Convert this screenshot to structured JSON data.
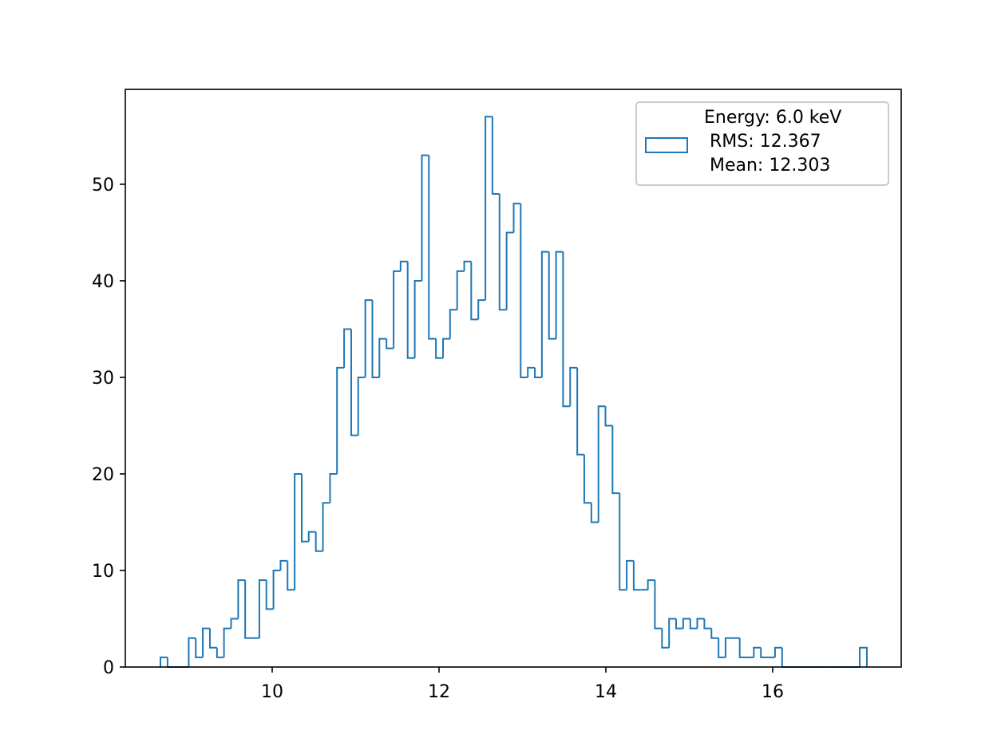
{
  "chart_data": {
    "type": "histogram",
    "bins": [
      8.66,
      8.745,
      8.829,
      8.914,
      8.999,
      9.083,
      9.168,
      9.253,
      9.338,
      9.422,
      9.507,
      9.592,
      9.676,
      9.761,
      9.846,
      9.93,
      10.015,
      10.1,
      10.184,
      10.269,
      10.354,
      10.438,
      10.523,
      10.608,
      10.693,
      10.777,
      10.862,
      10.947,
      11.031,
      11.116,
      11.201,
      11.285,
      11.37,
      11.455,
      11.539,
      11.624,
      11.709,
      11.794,
      11.878,
      11.963,
      12.048,
      12.132,
      12.217,
      12.302,
      12.386,
      12.471,
      12.556,
      12.64,
      12.725,
      12.81,
      12.895,
      12.979,
      13.064,
      13.149,
      13.233,
      13.318,
      13.403,
      13.487,
      13.572,
      13.657,
      13.741,
      13.826,
      13.911,
      13.995,
      14.08,
      14.165,
      14.25,
      14.334,
      14.419,
      14.504,
      14.588,
      14.673,
      14.758,
      14.842,
      14.927,
      15.012,
      15.096,
      15.181,
      15.266,
      15.351,
      15.435,
      15.52,
      15.605,
      15.689,
      15.774,
      15.859,
      15.943,
      16.028,
      16.113,
      16.197,
      16.282,
      16.367,
      16.451,
      16.536,
      16.621,
      16.706,
      16.79,
      16.875,
      16.96,
      17.044,
      17.129
    ],
    "series": [
      {
        "name": "Energy: 6.0 keV\n RMS: 12.367\n Mean: 12.303",
        "color": "#1f77b4",
        "values": [
          1,
          0,
          0,
          0,
          3,
          1,
          4,
          2,
          1,
          4,
          5,
          9,
          3,
          3,
          9,
          6,
          10,
          11,
          8,
          20,
          13,
          14,
          12,
          17,
          20,
          31,
          35,
          24,
          30,
          38,
          30,
          34,
          33,
          41,
          42,
          32,
          40,
          53,
          34,
          32,
          34,
          37,
          41,
          42,
          36,
          38,
          57,
          49,
          37,
          45,
          48,
          30,
          31,
          30,
          43,
          34,
          43,
          27,
          31,
          22,
          17,
          15,
          27,
          25,
          18,
          8,
          11,
          8,
          8,
          9,
          4,
          2,
          5,
          4,
          5,
          4,
          5,
          4,
          3,
          1,
          3,
          3,
          1,
          1,
          2,
          1,
          1,
          2,
          0,
          0,
          0,
          0,
          0,
          0,
          0,
          0,
          0,
          0,
          0,
          2
        ]
      }
    ],
    "xlim": [
      8.239,
      17.541
    ],
    "xticks": [
      10,
      12,
      14,
      16
    ],
    "ylim": [
      0,
      59.83
    ],
    "yticks": [
      0,
      10,
      20,
      30,
      40,
      50
    ],
    "legend": "upper right"
  }
}
